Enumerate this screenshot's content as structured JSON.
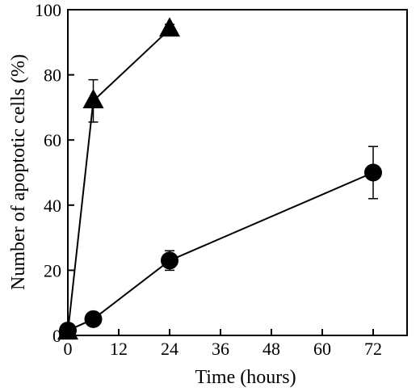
{
  "chart_data": {
    "type": "line",
    "title": "",
    "xlabel": "Time (hours)",
    "ylabel": "Number of apoptotic cells (%)",
    "xlim": [
      0,
      80
    ],
    "ylim": [
      0,
      100
    ],
    "x_ticks": [
      0,
      12,
      24,
      36,
      48,
      60,
      72
    ],
    "y_ticks": [
      0,
      20,
      40,
      60,
      80,
      100
    ],
    "grid": false,
    "legend": "none",
    "series": [
      {
        "marker": "triangle",
        "color": "#000000",
        "points": [
          {
            "x": 0,
            "y": 1,
            "err": 0
          },
          {
            "x": 6,
            "y": 72,
            "err": 6.5
          },
          {
            "x": 24,
            "y": 94,
            "err": 1.5
          }
        ]
      },
      {
        "marker": "circle",
        "color": "#000000",
        "points": [
          {
            "x": 0,
            "y": 1.5,
            "err": 0
          },
          {
            "x": 6,
            "y": 5,
            "err": 1.5
          },
          {
            "x": 24,
            "y": 23,
            "err": 3
          },
          {
            "x": 72,
            "y": 50,
            "err": 8
          }
        ]
      }
    ]
  }
}
